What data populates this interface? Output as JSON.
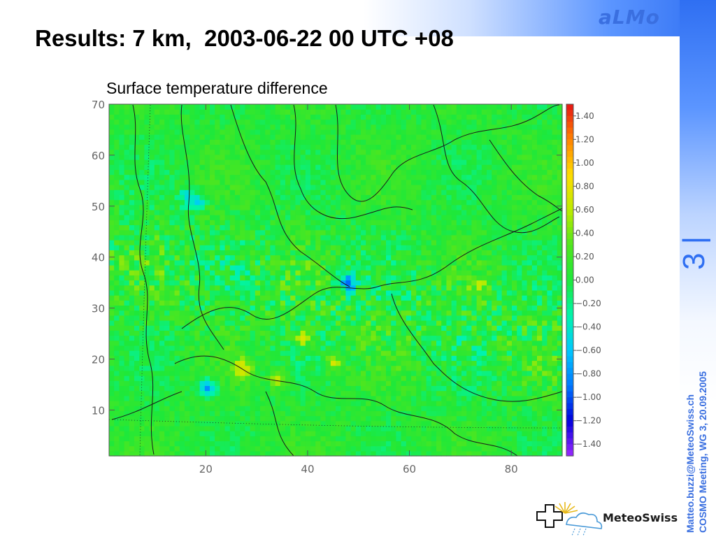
{
  "header": {
    "title": "Results: 7 km,  2003-06-22 00 UTC +08",
    "brand": "aLMo"
  },
  "sidebar": {
    "slide_number": "3 |",
    "email": "Matteo.buzzi@MeteoSwiss.ch",
    "meeting": "COSMO Meeting, WG 3, 20.09.2005"
  },
  "logo": {
    "text": "MeteoSwiss",
    "icon": "meteoswiss-cross-sun-cloud-icon"
  },
  "colors": {
    "accent": "#2f6ff2",
    "field_base": "#1ee83a",
    "coast_lines": "#1a1a1a"
  },
  "chart_data": {
    "type": "heatmap",
    "title": "Surface temperature difference",
    "xlabel": "",
    "ylabel": "",
    "xlim": [
      1,
      90
    ],
    "ylim": [
      1,
      70
    ],
    "x_ticks": [
      "20",
      "40",
      "60",
      "80"
    ],
    "y_ticks": [
      "70",
      "60",
      "50",
      "40",
      "30",
      "20",
      "10"
    ],
    "x_tick_values": [
      20,
      40,
      60,
      80
    ],
    "y_tick_values": [
      70,
      60,
      50,
      40,
      30,
      20,
      10
    ],
    "colorbar": {
      "min": -1.5,
      "max": 1.5,
      "labels": [
        "1.40",
        "1.20",
        "1.00",
        "0.80",
        "0.60",
        "0.40",
        "0.20",
        "0.00",
        "−0.20",
        "−0.40",
        "−0.60",
        "−0.80",
        "−1.00",
        "−1.20",
        "−1.40"
      ],
      "label_values": [
        1.4,
        1.2,
        1.0,
        0.8,
        0.6,
        0.4,
        0.2,
        0.0,
        -0.2,
        -0.4,
        -0.6,
        -0.8,
        -1.0,
        -1.2,
        -1.4
      ]
    },
    "grid": false,
    "legend": "right",
    "field_summary": {
      "background_value": 0.05,
      "range": [
        -1.4,
        1.2
      ],
      "anomalies": [
        {
          "x": 20,
          "y": 14,
          "value": -1.1
        },
        {
          "x": 48,
          "y": 35,
          "value": -0.9
        },
        {
          "x": 18,
          "y": 51,
          "value": -0.6
        },
        {
          "x": 16,
          "y": 52,
          "value": -0.6
        },
        {
          "x": 27,
          "y": 18,
          "value": 0.8
        },
        {
          "x": 39,
          "y": 24,
          "value": 0.8
        },
        {
          "x": 34,
          "y": 16,
          "value": 0.7
        },
        {
          "x": 45,
          "y": 19,
          "value": 0.7
        },
        {
          "x": 74,
          "y": 34,
          "value": 0.5
        }
      ]
    }
  }
}
